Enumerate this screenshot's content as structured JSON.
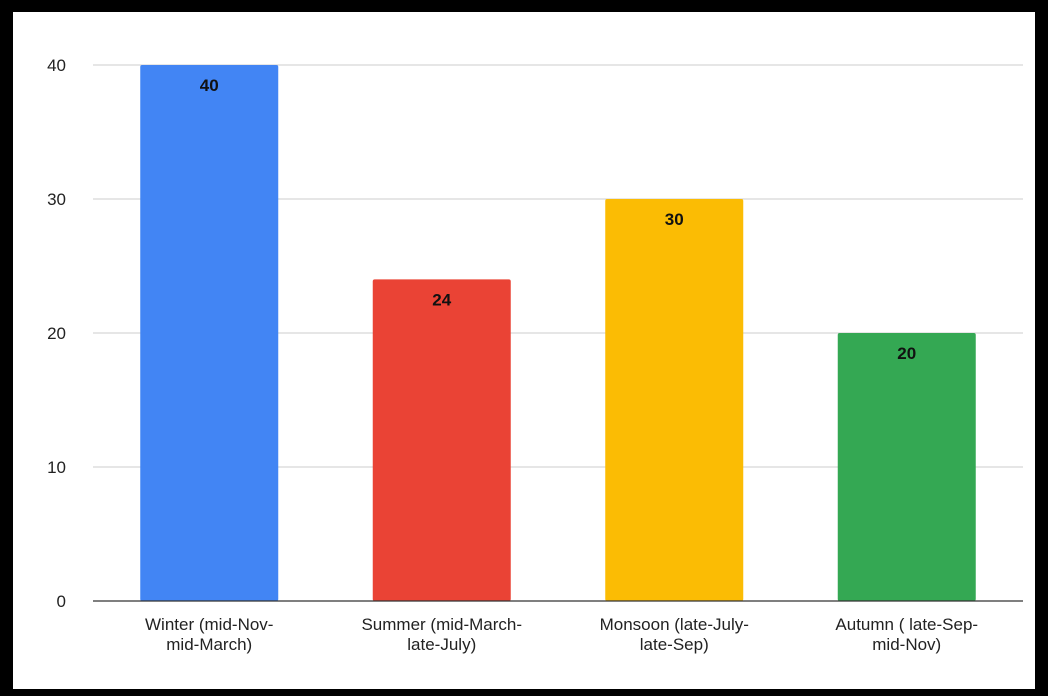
{
  "chart_data": {
    "type": "bar",
    "title": "",
    "xlabel": "",
    "ylabel": "",
    "categories": [
      [
        "Winter (mid-Nov-",
        "mid-March)"
      ],
      [
        "Summer (mid-March-",
        "late-July)"
      ],
      [
        "Monsoon (late-July-",
        "late-Sep)"
      ],
      [
        "Autumn ( late-Sep-",
        "mid-Nov)"
      ]
    ],
    "values": [
      40,
      24,
      30,
      20
    ],
    "colors": [
      "#4285f4",
      "#ea4335",
      "#fbbc04",
      "#34a853"
    ],
    "ylim": [
      0,
      40
    ],
    "yticks": [
      0,
      10,
      20,
      30,
      40
    ],
    "grid": true,
    "legend": "none",
    "data_labels": true
  }
}
